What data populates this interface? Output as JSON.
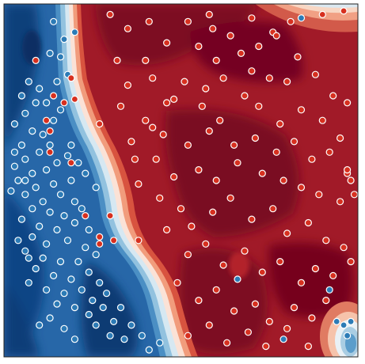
{
  "chart_data": {
    "type": "scatter",
    "title": "",
    "xlabel": "",
    "ylabel": "",
    "xlim": [
      0,
      1
    ],
    "ylim": [
      0,
      1
    ],
    "grid": false,
    "axes_ticks": false,
    "colors": {
      "class_a": "#2c7bb6",
      "class_b": "#d7301f",
      "marker_edge": "#ffffff",
      "field_low": "#08306b",
      "field_mid": "#f7f7f7",
      "field_high": "#67000d"
    },
    "background_field": {
      "kind": "decision_function",
      "colormap": "RdBu"
    },
    "series": [
      {
        "color": "class_a",
        "points": [
          [
            0.14,
            0.95
          ],
          [
            0.17,
            0.9
          ],
          [
            0.2,
            0.92
          ],
          [
            0.07,
            0.78
          ],
          [
            0.05,
            0.74
          ],
          [
            0.09,
            0.72
          ],
          [
            0.06,
            0.69
          ],
          [
            0.03,
            0.66
          ],
          [
            0.08,
            0.64
          ],
          [
            0.05,
            0.6
          ],
          [
            0.1,
            0.58
          ],
          [
            0.13,
            0.6
          ],
          [
            0.06,
            0.56
          ],
          [
            0.03,
            0.54
          ],
          [
            0.08,
            0.52
          ],
          [
            0.12,
            0.53
          ],
          [
            0.04,
            0.5
          ],
          [
            0.09,
            0.48
          ],
          [
            0.14,
            0.49
          ],
          [
            0.06,
            0.46
          ],
          [
            0.11,
            0.44
          ],
          [
            0.16,
            0.46
          ],
          [
            0.19,
            0.5
          ],
          [
            0.2,
            0.44
          ],
          [
            0.08,
            0.42
          ],
          [
            0.13,
            0.41
          ],
          [
            0.17,
            0.4
          ],
          [
            0.22,
            0.42
          ],
          [
            0.05,
            0.39
          ],
          [
            0.1,
            0.37
          ],
          [
            0.15,
            0.36
          ],
          [
            0.2,
            0.38
          ],
          [
            0.24,
            0.36
          ],
          [
            0.08,
            0.34
          ],
          [
            0.12,
            0.32
          ],
          [
            0.18,
            0.33
          ],
          [
            0.23,
            0.31
          ],
          [
            0.06,
            0.3
          ],
          [
            0.11,
            0.28
          ],
          [
            0.16,
            0.27
          ],
          [
            0.21,
            0.27
          ],
          [
            0.26,
            0.29
          ],
          [
            0.09,
            0.25
          ],
          [
            0.14,
            0.23
          ],
          [
            0.19,
            0.22
          ],
          [
            0.24,
            0.24
          ],
          [
            0.07,
            0.21
          ],
          [
            0.12,
            0.19
          ],
          [
            0.17,
            0.18
          ],
          [
            0.22,
            0.19
          ],
          [
            0.27,
            0.21
          ],
          [
            0.15,
            0.15
          ],
          [
            0.2,
            0.14
          ],
          [
            0.25,
            0.16
          ],
          [
            0.29,
            0.18
          ],
          [
            0.24,
            0.12
          ],
          [
            0.28,
            0.14
          ],
          [
            0.26,
            0.09
          ],
          [
            0.31,
            0.1
          ],
          [
            0.33,
            0.14
          ],
          [
            0.3,
            0.06
          ],
          [
            0.34,
            0.05
          ],
          [
            0.36,
            0.09
          ],
          [
            0.39,
            0.06
          ],
          [
            0.41,
            0.02
          ],
          [
            0.44,
            0.04
          ],
          [
            0.06,
            0.5
          ],
          [
            0.02,
            0.47
          ],
          [
            0.15,
            0.55
          ],
          [
            0.18,
            0.57
          ],
          [
            0.11,
            0.63
          ],
          [
            0.14,
            0.67
          ],
          [
            0.16,
            0.7
          ],
          [
            0.12,
            0.72
          ],
          [
            0.1,
            0.76
          ],
          [
            0.19,
            0.6
          ],
          [
            0.21,
            0.55
          ],
          [
            0.23,
            0.52
          ],
          [
            0.26,
            0.48
          ],
          [
            0.07,
            0.28
          ],
          [
            0.04,
            0.33
          ],
          [
            0.13,
            0.11
          ],
          [
            0.1,
            0.09
          ],
          [
            0.17,
            0.08
          ],
          [
            0.2,
            0.05
          ],
          [
            0.03,
            0.58
          ],
          [
            0.15,
            0.78
          ],
          [
            0.18,
            0.8
          ],
          [
            0.13,
            0.86
          ],
          [
            0.16,
            0.85
          ],
          [
            0.66,
            0.22
          ],
          [
            0.92,
            0.19
          ],
          [
            0.94,
            0.1
          ],
          [
            0.96,
            0.09
          ],
          [
            0.98,
            0.1
          ],
          [
            0.97,
            0.06
          ],
          [
            0.79,
            0.05
          ],
          [
            0.84,
            0.96
          ]
        ]
      },
      {
        "color": "class_b",
        "points": [
          [
            0.09,
            0.84
          ],
          [
            0.19,
            0.79
          ],
          [
            0.14,
            0.74
          ],
          [
            0.17,
            0.72
          ],
          [
            0.2,
            0.73
          ],
          [
            0.27,
            0.66
          ],
          [
            0.12,
            0.67
          ],
          [
            0.13,
            0.64
          ],
          [
            0.13,
            0.58
          ],
          [
            0.19,
            0.55
          ],
          [
            0.23,
            0.4
          ],
          [
            0.3,
            0.4
          ],
          [
            0.27,
            0.34
          ],
          [
            0.27,
            0.32
          ],
          [
            0.31,
            0.33
          ],
          [
            0.38,
            0.33
          ],
          [
            0.3,
            0.97
          ],
          [
            0.35,
            0.93
          ],
          [
            0.41,
            0.95
          ],
          [
            0.52,
            0.95
          ],
          [
            0.58,
            0.97
          ],
          [
            0.64,
            0.91
          ],
          [
            0.7,
            0.96
          ],
          [
            0.76,
            0.92
          ],
          [
            0.81,
            0.95
          ],
          [
            0.9,
            0.97
          ],
          [
            0.96,
            0.98
          ],
          [
            0.55,
            0.88
          ],
          [
            0.6,
            0.84
          ],
          [
            0.67,
            0.86
          ],
          [
            0.77,
            0.91
          ],
          [
            0.83,
            0.85
          ],
          [
            0.32,
            0.84
          ],
          [
            0.4,
            0.84
          ],
          [
            0.46,
            0.89
          ],
          [
            0.51,
            0.78
          ],
          [
            0.57,
            0.76
          ],
          [
            0.62,
            0.79
          ],
          [
            0.7,
            0.81
          ],
          [
            0.75,
            0.79
          ],
          [
            0.8,
            0.78
          ],
          [
            0.88,
            0.8
          ],
          [
            0.93,
            0.74
          ],
          [
            0.97,
            0.72
          ],
          [
            0.35,
            0.77
          ],
          [
            0.42,
            0.79
          ],
          [
            0.48,
            0.73
          ],
          [
            0.56,
            0.71
          ],
          [
            0.61,
            0.67
          ],
          [
            0.68,
            0.74
          ],
          [
            0.72,
            0.71
          ],
          [
            0.78,
            0.66
          ],
          [
            0.84,
            0.7
          ],
          [
            0.9,
            0.67
          ],
          [
            0.95,
            0.62
          ],
          [
            0.33,
            0.71
          ],
          [
            0.4,
            0.67
          ],
          [
            0.45,
            0.63
          ],
          [
            0.52,
            0.6
          ],
          [
            0.58,
            0.64
          ],
          [
            0.65,
            0.6
          ],
          [
            0.71,
            0.62
          ],
          [
            0.77,
            0.58
          ],
          [
            0.82,
            0.61
          ],
          [
            0.87,
            0.56
          ],
          [
            0.92,
            0.58
          ],
          [
            0.97,
            0.52
          ],
          [
            0.36,
            0.61
          ],
          [
            0.43,
            0.56
          ],
          [
            0.48,
            0.51
          ],
          [
            0.55,
            0.53
          ],
          [
            0.6,
            0.5
          ],
          [
            0.66,
            0.55
          ],
          [
            0.73,
            0.52
          ],
          [
            0.79,
            0.5
          ],
          [
            0.84,
            0.48
          ],
          [
            0.89,
            0.46
          ],
          [
            0.95,
            0.44
          ],
          [
            0.38,
            0.49
          ],
          [
            0.44,
            0.45
          ],
          [
            0.5,
            0.42
          ],
          [
            0.53,
            0.37
          ],
          [
            0.59,
            0.41
          ],
          [
            0.64,
            0.45
          ],
          [
            0.7,
            0.39
          ],
          [
            0.76,
            0.42
          ],
          [
            0.8,
            0.35
          ],
          [
            0.86,
            0.38
          ],
          [
            0.91,
            0.33
          ],
          [
            0.96,
            0.31
          ],
          [
            0.46,
            0.36
          ],
          [
            0.52,
            0.29
          ],
          [
            0.57,
            0.32
          ],
          [
            0.62,
            0.26
          ],
          [
            0.68,
            0.3
          ],
          [
            0.73,
            0.24
          ],
          [
            0.78,
            0.27
          ],
          [
            0.84,
            0.21
          ],
          [
            0.88,
            0.25
          ],
          [
            0.93,
            0.23
          ],
          [
            0.98,
            0.27
          ],
          [
            0.49,
            0.21
          ],
          [
            0.55,
            0.16
          ],
          [
            0.6,
            0.19
          ],
          [
            0.65,
            0.13
          ],
          [
            0.71,
            0.15
          ],
          [
            0.75,
            0.1
          ],
          [
            0.82,
            0.14
          ],
          [
            0.87,
            0.11
          ],
          [
            0.91,
            0.16
          ],
          [
            0.52,
            0.06
          ],
          [
            0.58,
            0.09
          ],
          [
            0.63,
            0.04
          ],
          [
            0.69,
            0.07
          ],
          [
            0.74,
            0.03
          ],
          [
            0.8,
            0.08
          ],
          [
            0.86,
            0.03
          ],
          [
            0.42,
            0.65
          ],
          [
            0.46,
            0.72
          ],
          [
            0.37,
            0.56
          ],
          [
            0.99,
            0.46
          ],
          [
            0.98,
            0.5
          ],
          [
            0.97,
            0.53
          ],
          [
            0.59,
            0.93
          ],
          [
            0.72,
            0.88
          ]
        ]
      }
    ]
  }
}
